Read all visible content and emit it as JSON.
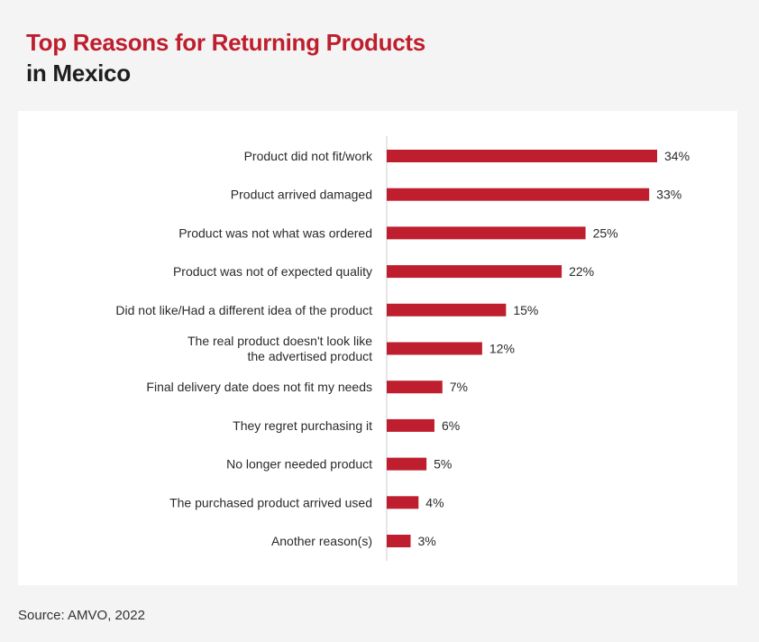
{
  "title": {
    "line1": "Top Reasons for Returning Products",
    "line2": "in Mexico"
  },
  "source": "Source: AMVO, 2022",
  "colors": {
    "bar": "#be1e2d",
    "title_accent": "#be1e2d",
    "axis": "#cccccc"
  },
  "chart_data": {
    "type": "bar",
    "orientation": "horizontal",
    "categories": [
      "Product did not fit/work",
      "Product arrived damaged",
      "Product was not what was ordered",
      "Product was not of expected quality",
      "Did not like/Had a different idea of the product",
      "The real product doesn't look like the advertised product",
      "Final delivery date does not fit my needs",
      "They regret purchasing it",
      "No longer needed product",
      "The purchased product arrived used",
      "Another reason(s)"
    ],
    "category_lines": [
      [
        "Product did not fit/work"
      ],
      [
        "Product arrived damaged"
      ],
      [
        "Product was not what was ordered"
      ],
      [
        "Product was not of expected quality"
      ],
      [
        "Did not like/Had a different idea of the product"
      ],
      [
        "The real product doesn't look like",
        "the advertised product"
      ],
      [
        "Final delivery date does not fit my needs"
      ],
      [
        "They regret purchasing it"
      ],
      [
        "No longer needed product"
      ],
      [
        "The purchased product arrived used"
      ],
      [
        "Another reason(s)"
      ]
    ],
    "values": [
      34,
      33,
      25,
      22,
      15,
      12,
      7,
      6,
      5,
      4,
      3
    ],
    "value_labels": [
      "34%",
      "33%",
      "25%",
      "22%",
      "15%",
      "12%",
      "7%",
      "6%",
      "5%",
      "4%",
      "3%"
    ],
    "unit": "%",
    "xlim": [
      0,
      34
    ],
    "grid": false,
    "legend": "none"
  }
}
